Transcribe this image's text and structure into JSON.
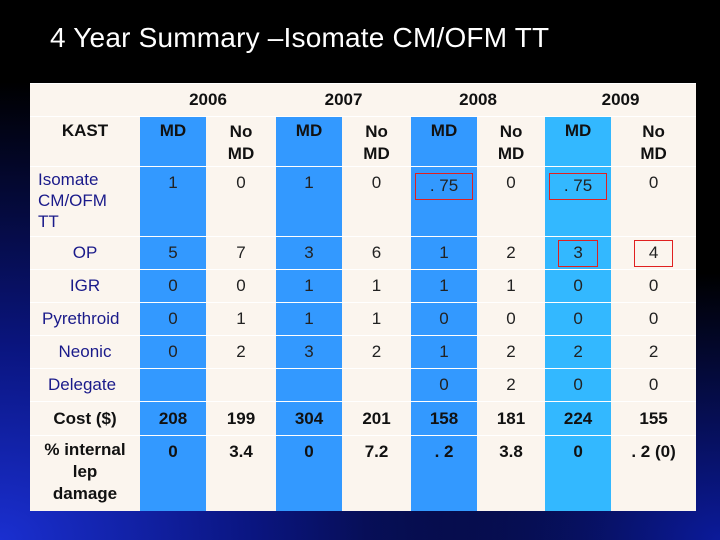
{
  "slide": {
    "title": "4 Year Summary –Isomate CM/OFM TT"
  },
  "table": {
    "years": [
      "2006",
      "2007",
      "2008",
      "2009"
    ],
    "corner_label": "KAST",
    "col_headers": [
      "MD",
      "No\nMD",
      "MD",
      "No\nMD",
      "MD",
      "No\nMD",
      "MD",
      "No\nMD"
    ],
    "rows": [
      {
        "label": "Isomate\nCM/OFM\nTT",
        "values": [
          "1",
          "0",
          "1",
          "0",
          ". 75",
          "0",
          ". 75",
          "0"
        ]
      },
      {
        "label": "OP",
        "values": [
          "5",
          "7",
          "3",
          "6",
          "1",
          "2",
          "3",
          "4"
        ]
      },
      {
        "label": "IGR",
        "values": [
          "0",
          "0",
          "1",
          "1",
          "1",
          "1",
          "0",
          "0"
        ]
      },
      {
        "label": "Pyrethroid",
        "values": [
          "0",
          "1",
          "1",
          "1",
          "0",
          "0",
          "0",
          "0"
        ]
      },
      {
        "label": "Neonic",
        "values": [
          "0",
          "2",
          "3",
          "2",
          "1",
          "2",
          "2",
          "2"
        ]
      },
      {
        "label": "Delegate",
        "values": [
          "",
          "",
          "",
          "",
          "0",
          "2",
          "0",
          "0"
        ]
      },
      {
        "label": "Cost ($)",
        "values": [
          "208",
          "199",
          "304",
          "201",
          "158",
          "181",
          "224",
          "155"
        ]
      },
      {
        "label": "% internal\nlep\ndamage",
        "values": [
          "0",
          "3.4",
          "0",
          "7.2",
          ". 2",
          "3.8",
          "0",
          ". 2 (0)"
        ]
      }
    ]
  },
  "colors": {
    "md_column": "#3399ff",
    "md_column_2009": "#33b8ff",
    "highlight_box": "#e02020",
    "table_bg": "#fbf5ee"
  }
}
